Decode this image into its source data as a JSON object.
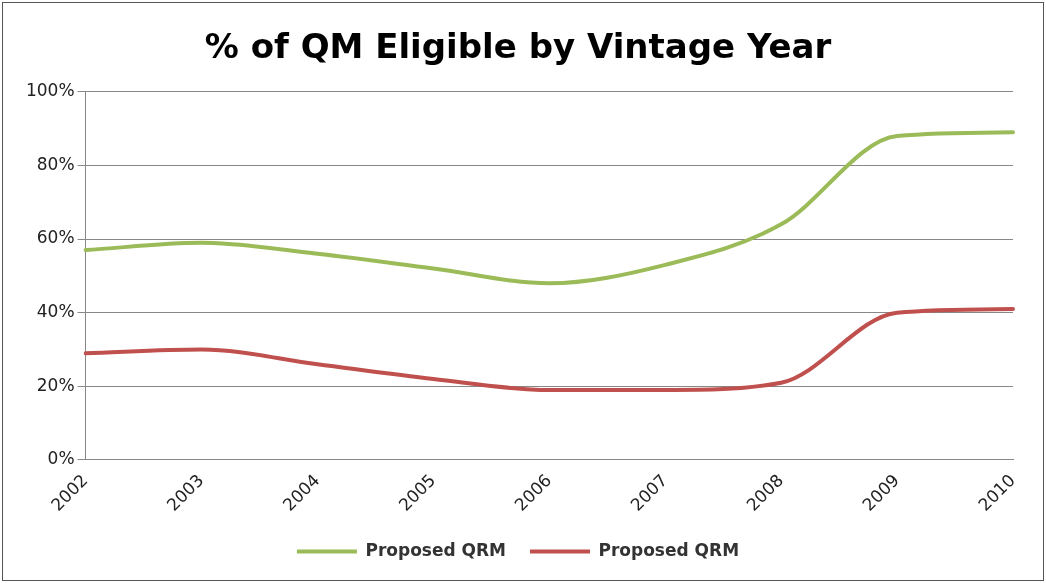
{
  "chart_data": {
    "type": "line",
    "title": "% of QM Eligible by Vintage Year",
    "categories": [
      "2002",
      "2003",
      "2004",
      "2005",
      "2006",
      "2007",
      "2008",
      "2009",
      "2010"
    ],
    "series": [
      {
        "name": "Proposed QRM",
        "color": "#9bbb59",
        "values": [
          57,
          59,
          56,
          52,
          48,
          53,
          64,
          88,
          89
        ]
      },
      {
        "name": "Proposed QRM",
        "color": "#c0504d",
        "values": [
          29,
          30,
          26,
          22,
          19,
          19,
          21,
          40,
          41
        ]
      }
    ],
    "ylim": [
      0,
      100
    ],
    "yticks": [
      {
        "value": 0,
        "label": "0%"
      },
      {
        "value": 20,
        "label": "20%"
      },
      {
        "value": 40,
        "label": "40%"
      },
      {
        "value": 60,
        "label": "60%"
      },
      {
        "value": 80,
        "label": "80%"
      },
      {
        "value": 100,
        "label": "100%"
      }
    ],
    "grid": "y",
    "legend": "bottom",
    "marker": "none",
    "line_style": "solid"
  }
}
